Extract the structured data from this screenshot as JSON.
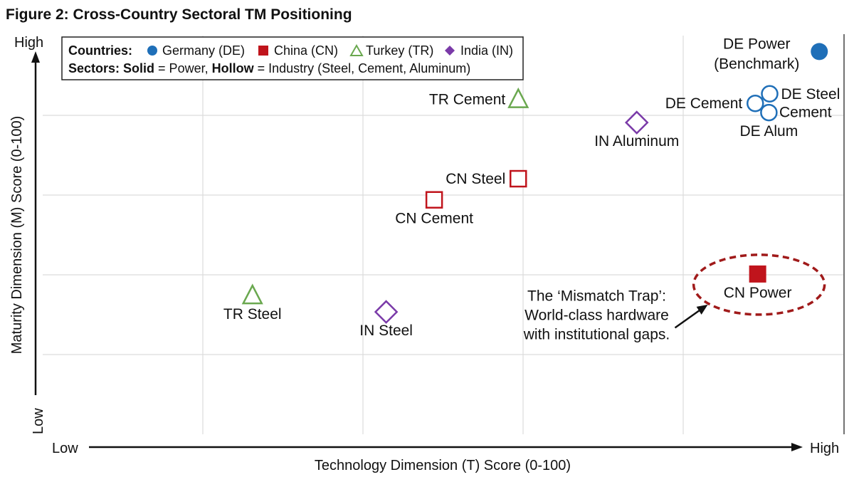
{
  "chart_data": {
    "type": "scatter",
    "title": "Figure 2: Cross-Country Sectoral TM Positioning",
    "xlabel": "Technology Dimension (T) Score (0-100)",
    "ylabel": "Maturity Dimension (M) Score (0-100)",
    "xlim": [
      0,
      100
    ],
    "ylim": [
      0,
      100
    ],
    "x_low_label": "Low",
    "x_high_label": "High",
    "y_low_label": "Low",
    "y_high_label": "High",
    "grid": true,
    "grid_divisions": 5,
    "legend": {
      "placement": "top-left",
      "countries_title": "Countries:",
      "countries": [
        {
          "name": "Germany (DE)",
          "marker": "circle",
          "color": "#1f6fb8"
        },
        {
          "name": "China (CN)",
          "marker": "square",
          "color": "#c0141c"
        },
        {
          "name": "Turkey (TR)",
          "marker": "triangle",
          "color": "#6aa84f"
        },
        {
          "name": "India (IN)",
          "marker": "diamond",
          "color": "#7a3aa8"
        }
      ],
      "sectors_title": "Sectors:",
      "solid_word": "Solid",
      "solid_text": " = Power, ",
      "hollow_word": "Hollow",
      "hollow_text": " = Industry (Steel, Cement, Aluminum)"
    },
    "points": [
      {
        "label": "DE Power",
        "label2": "(Benchmark)",
        "country": "DE",
        "sector": "Power",
        "x": 97,
        "y": 96,
        "filled": true,
        "label_pos": "left-above"
      },
      {
        "label": "DE Steel",
        "country": "DE",
        "sector": "Steel",
        "x": 90.8,
        "y": 85.4,
        "filled": false,
        "label_pos": "right"
      },
      {
        "label": "DE Cement",
        "country": "DE",
        "sector": "Cement",
        "x": 89,
        "y": 83,
        "filled": false,
        "label_pos": "left"
      },
      {
        "label": "DE Alum",
        "country": "DE",
        "sector": "Aluminum",
        "x": 90.7,
        "y": 80.7,
        "filled": false,
        "label_pos": "below"
      },
      {
        "label": "TR Cement",
        "country": "TR",
        "sector": "Cement",
        "x": 59.4,
        "y": 84,
        "filled": false,
        "label_pos": "left"
      },
      {
        "label": "IN Aluminum",
        "country": "IN",
        "sector": "Aluminum",
        "x": 74.2,
        "y": 78.2,
        "filled": false,
        "label_pos": "below"
      },
      {
        "label": "CN Steel",
        "country": "CN",
        "sector": "Steel",
        "x": 59.4,
        "y": 64.1,
        "filled": false,
        "label_pos": "left"
      },
      {
        "label": "CN Cement",
        "country": "CN",
        "sector": "Cement",
        "x": 48.9,
        "y": 58.8,
        "filled": false,
        "label_pos": "below"
      },
      {
        "label": "CN Power",
        "country": "CN",
        "sector": "Power",
        "x": 89.3,
        "y": 40.2,
        "filled": true,
        "label_pos": "below"
      },
      {
        "label": "TR Steel",
        "country": "TR",
        "sector": "Steel",
        "x": 26.2,
        "y": 34.8,
        "filled": false,
        "label_pos": "below"
      },
      {
        "label": "IN Steel",
        "country": "IN",
        "sector": "Steel",
        "x": 42.9,
        "y": 30.7,
        "filled": false,
        "label_pos": "below"
      }
    ],
    "extra_labels": [
      {
        "text": "Cement",
        "x": 92,
        "y": 80.8
      }
    ],
    "annotation": {
      "lines": [
        "The ‘Mismatch Trap’:",
        "World-class hardware",
        "with institutional gaps."
      ],
      "x": 69.2,
      "y": 33.5,
      "highlight_point": "CN Power",
      "highlight_color": "#a01a1a"
    }
  }
}
